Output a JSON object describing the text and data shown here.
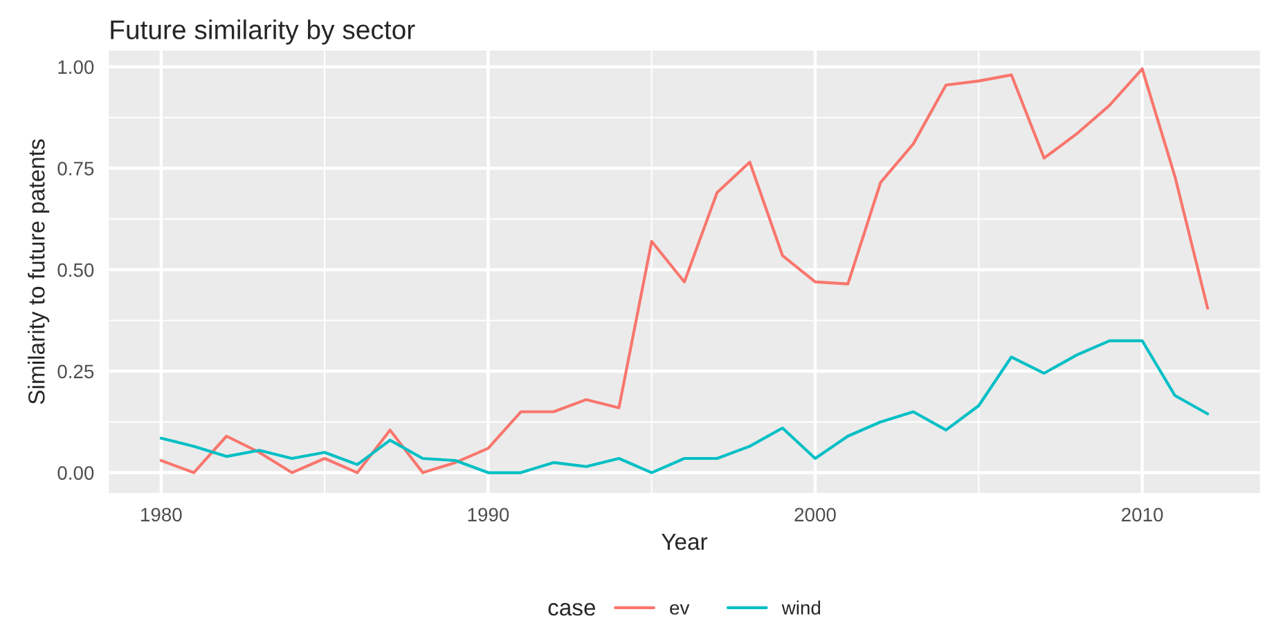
{
  "chart_data": {
    "type": "line",
    "title": "Future similarity by sector",
    "xlabel": "Year",
    "ylabel": "Similarity to future patents",
    "legend_title": "case",
    "x": [
      1980,
      1981,
      1982,
      1983,
      1984,
      1985,
      1986,
      1987,
      1988,
      1989,
      1990,
      1991,
      1992,
      1993,
      1994,
      1995,
      1996,
      1997,
      1998,
      1999,
      2000,
      2001,
      2002,
      2003,
      2004,
      2005,
      2006,
      2007,
      2008,
      2009,
      2010,
      2011,
      2012
    ],
    "series": [
      {
        "name": "ev",
        "color": "#f8766d",
        "values": [
          0.03,
          0.0,
          0.09,
          0.05,
          0.0,
          0.035,
          0.0,
          0.105,
          0.0,
          0.025,
          0.06,
          0.15,
          0.15,
          0.18,
          0.16,
          0.57,
          0.47,
          0.69,
          0.765,
          0.535,
          0.47,
          0.465,
          0.715,
          0.81,
          0.955,
          0.965,
          0.98,
          0.775,
          0.835,
          0.905,
          0.995,
          0.73,
          0.405
        ]
      },
      {
        "name": "wind",
        "color": "#00bfc4",
        "values": [
          0.085,
          0.065,
          0.04,
          0.055,
          0.035,
          0.05,
          0.02,
          0.08,
          0.035,
          0.03,
          0.0,
          0.0,
          0.025,
          0.015,
          0.035,
          0.0,
          0.035,
          0.035,
          0.065,
          0.11,
          0.035,
          0.09,
          0.125,
          0.15,
          0.105,
          0.165,
          0.285,
          0.245,
          0.29,
          0.325,
          0.325,
          0.19,
          0.145
        ]
      }
    ],
    "xlim": [
      1978.4,
      2013.6
    ],
    "xticks": [
      1980,
      1990,
      2000,
      2010
    ],
    "ylim": [
      -0.05,
      1.04
    ],
    "yticks": [
      {
        "value": 0,
        "label": "0.00"
      },
      {
        "value": 0.25,
        "label": "0.25"
      },
      {
        "value": 0.5,
        "label": "0.50"
      },
      {
        "value": 0.75,
        "label": "0.75"
      },
      {
        "value": 1,
        "label": "1.00"
      }
    ],
    "grid": true,
    "legend": "bottom",
    "marker": "none",
    "line_style": "solid"
  }
}
